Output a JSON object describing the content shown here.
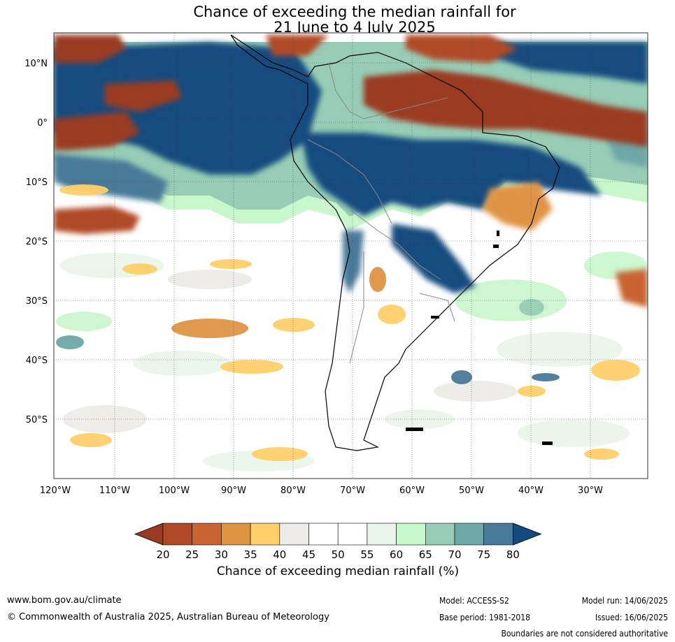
{
  "title": {
    "line1": "Chance of exceeding the median rainfall for",
    "line2": "21 June to 4 July 2025"
  },
  "map": {
    "region": "South America",
    "lat_ticks": [
      "10°N",
      "0°",
      "10°S",
      "20°S",
      "30°S",
      "40°S",
      "50°S"
    ],
    "lon_ticks": [
      "120°W",
      "110°W",
      "100°W",
      "90°W",
      "80°W",
      "70°W",
      "60°W",
      "50°W",
      "40°W",
      "30°W"
    ]
  },
  "colorbar": {
    "label": "Chance of exceeding median rainfall (%)",
    "ticks": [
      "20",
      "25",
      "30",
      "35",
      "40",
      "45",
      "50",
      "55",
      "60",
      "65",
      "70",
      "75",
      "80"
    ],
    "colors": [
      "#9b3a20",
      "#b04a26",
      "#c96430",
      "#df9444",
      "#ffcf6a",
      "#ecebe7",
      "#ffffff",
      "#ffffff",
      "#e9f5ea",
      "#c9f7cc",
      "#97cdb6",
      "#6ea7a7",
      "#4a7a9a",
      "#124b80"
    ]
  },
  "footer": {
    "website": "www.bom.gov.au/climate",
    "copyright": "© Commonwealth of Australia 2025, Australian Bureau of Meteorology",
    "model": "Model: ACCESS-S2",
    "base_period": "Base period: 1981-2018",
    "model_run": "Model run: 14/06/2025",
    "issued": "Issued: 16/06/2025",
    "disclaimer": "Boundaries are not considered authoritative"
  }
}
